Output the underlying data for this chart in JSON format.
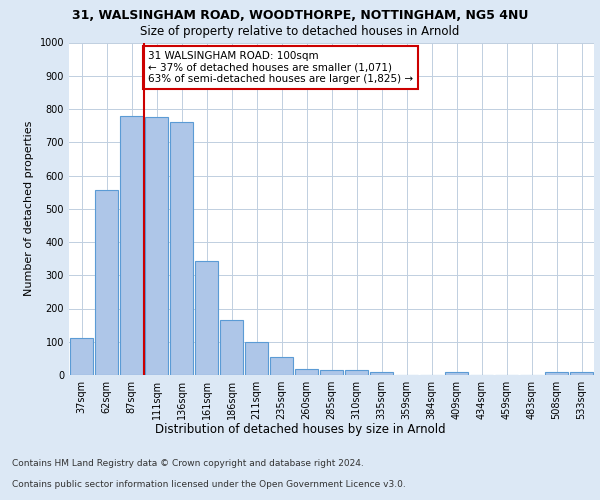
{
  "title_line1": "31, WALSINGHAM ROAD, WOODTHORPE, NOTTINGHAM, NG5 4NU",
  "title_line2": "Size of property relative to detached houses in Arnold",
  "xlabel": "Distribution of detached houses by size in Arnold",
  "ylabel": "Number of detached properties",
  "categories": [
    "37sqm",
    "62sqm",
    "87sqm",
    "111sqm",
    "136sqm",
    "161sqm",
    "186sqm",
    "211sqm",
    "235sqm",
    "260sqm",
    "285sqm",
    "310sqm",
    "335sqm",
    "359sqm",
    "384sqm",
    "409sqm",
    "434sqm",
    "459sqm",
    "483sqm",
    "508sqm",
    "533sqm"
  ],
  "values": [
    112,
    557,
    780,
    775,
    762,
    343,
    165,
    100,
    54,
    18,
    14,
    14,
    10,
    0,
    0,
    10,
    0,
    0,
    0,
    10,
    10
  ],
  "bar_color": "#aec6e8",
  "bar_edge_color": "#5b9bd5",
  "vline_color": "#cc0000",
  "annotation_text": "31 WALSINGHAM ROAD: 100sqm\n← 37% of detached houses are smaller (1,071)\n63% of semi-detached houses are larger (1,825) →",
  "annotation_box_color": "#ffffff",
  "annotation_box_edge": "#cc0000",
  "ylim": [
    0,
    1000
  ],
  "yticks": [
    0,
    100,
    200,
    300,
    400,
    500,
    600,
    700,
    800,
    900,
    1000
  ],
  "footer_line1": "Contains HM Land Registry data © Crown copyright and database right 2024.",
  "footer_line2": "Contains public sector information licensed under the Open Government Licence v3.0.",
  "background_color": "#dce8f5",
  "plot_bg_color": "#ffffff",
  "title1_fontsize": 9,
  "title2_fontsize": 8.5,
  "ylabel_fontsize": 8,
  "xlabel_fontsize": 8.5,
  "tick_fontsize": 7,
  "footer_fontsize": 6.5,
  "annotation_fontsize": 7.5
}
